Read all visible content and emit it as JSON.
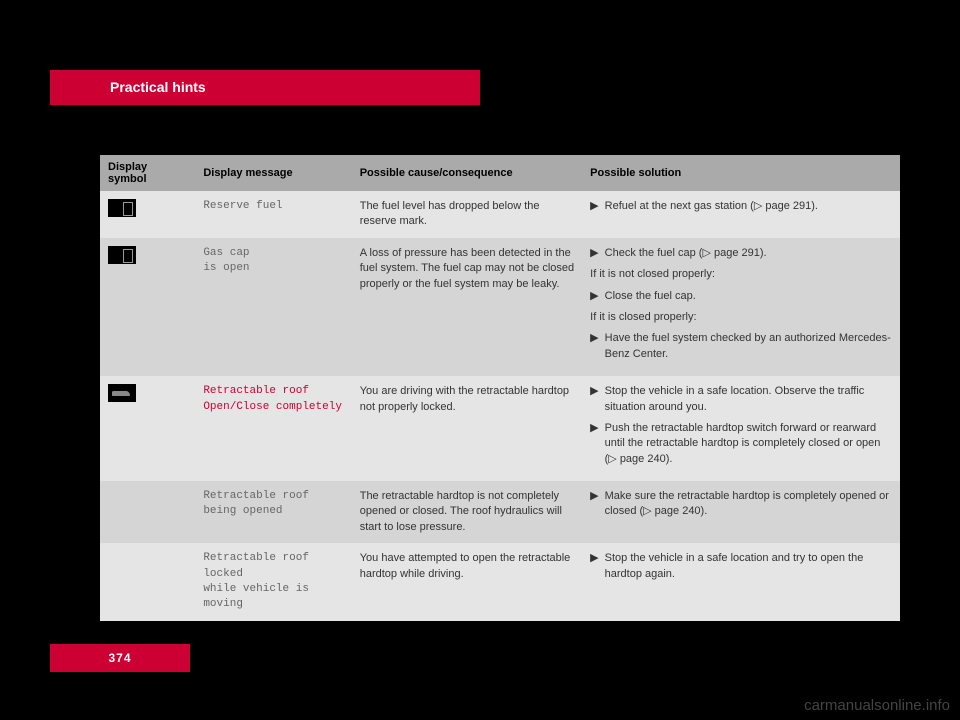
{
  "header": {
    "tab": "Practical hints"
  },
  "table": {
    "headers": [
      "Display symbol",
      "Display message",
      "Possible cause/consequence",
      "Possible solution"
    ],
    "rows": [
      {
        "shade": "light",
        "icon": "fuel",
        "message": "Reserve fuel",
        "message_class": "mono",
        "cause": "The fuel level has dropped below the reserve mark.",
        "solution": [
          {
            "type": "bullet",
            "text": "Refuel at the next gas station (▷ page 291)."
          }
        ]
      },
      {
        "shade": "dark",
        "icon": "fuel",
        "message": "Gas cap\nis open",
        "message_class": "mono",
        "cause": "A loss of pressure has been detected in the fuel system. The fuel cap may not be closed properly or the fuel system may be leaky.",
        "solution": [
          {
            "type": "bullet",
            "text": "Check the fuel cap (▷ page 291)."
          },
          {
            "type": "text",
            "text": "If it is not closed properly:"
          },
          {
            "type": "bullet",
            "text": "Close the fuel cap."
          },
          {
            "type": "text",
            "text": "If it is closed properly:"
          },
          {
            "type": "bullet",
            "text": "Have the fuel system checked by an authorized Mercedes-Benz Center."
          }
        ]
      },
      {
        "shade": "light",
        "icon": "car",
        "message": "Retractable roof\nOpen/Close completely",
        "message_class": "mono-red",
        "cause": "You are driving with the retractable hardtop not properly locked.",
        "solution": [
          {
            "type": "bullet",
            "text": "Stop the vehicle in a safe location. Observe the traffic situation around you."
          },
          {
            "type": "bullet",
            "text": "Push the retractable hardtop switch forward or rearward until the retractable hardtop is completely closed or open (▷ page 240)."
          }
        ]
      },
      {
        "shade": "dark",
        "icon": "",
        "message": "Retractable roof\nbeing opened",
        "message_class": "mono",
        "cause": "The retractable hardtop is not completely opened or closed. The roof hydraulics will start to lose pressure.",
        "solution": [
          {
            "type": "bullet",
            "text": "Make sure the retractable hardtop is completely opened or closed (▷ page 240)."
          }
        ]
      },
      {
        "shade": "light",
        "icon": "",
        "message": "Retractable roof\nlocked\nwhile vehicle is\nmoving",
        "message_class": "mono",
        "cause": "You have attempted to open the retractable hardtop while driving.",
        "solution": [
          {
            "type": "bullet",
            "text": "Stop the vehicle in a safe location and try to open the hardtop again."
          }
        ]
      }
    ]
  },
  "page_number": "374",
  "watermark": "carmanualsonline.info",
  "colors": {
    "red": "#cc0033",
    "header_bg": "#aaaaaa",
    "light_row": "#e5e5e5",
    "dark_row": "#d5d5d5"
  }
}
